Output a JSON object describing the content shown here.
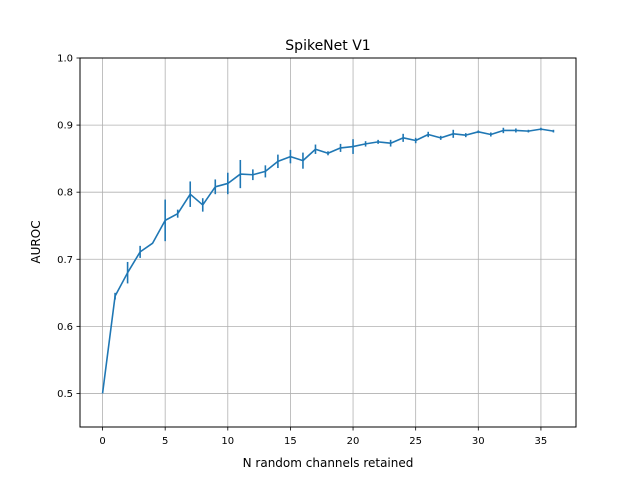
{
  "chart_data": {
    "type": "line",
    "title": "SpikeNet V1",
    "xlabel": "N random channels retained",
    "ylabel": "AUROC",
    "xlim": [
      -1.8,
      37.8
    ],
    "ylim": [
      0.45,
      1.0
    ],
    "xticks": [
      0,
      5,
      10,
      15,
      20,
      25,
      30,
      35
    ],
    "xtick_labels": [
      "0",
      "5",
      "10",
      "15",
      "20",
      "25",
      "30",
      "35"
    ],
    "yticks": [
      0.5,
      0.6,
      0.7,
      0.8,
      0.9,
      1.0
    ],
    "ytick_labels": [
      "0.5",
      "0.6",
      "0.7",
      "0.8",
      "0.9",
      "1.0"
    ],
    "grid": true,
    "line_color": "#1f77b4",
    "series": [
      {
        "x": [
          0,
          1,
          2,
          3,
          4,
          5,
          6,
          7,
          8,
          9,
          10,
          11,
          12,
          13,
          14,
          15,
          16,
          17,
          18,
          19,
          20,
          21,
          22,
          23,
          24,
          25,
          26,
          27,
          28,
          29,
          30,
          31,
          32,
          33,
          34,
          35,
          36
        ],
        "y": [
          0.5,
          0.645,
          0.68,
          0.711,
          0.724,
          0.758,
          0.768,
          0.797,
          0.781,
          0.808,
          0.813,
          0.827,
          0.826,
          0.831,
          0.846,
          0.853,
          0.847,
          0.864,
          0.858,
          0.866,
          0.868,
          0.872,
          0.875,
          0.873,
          0.881,
          0.877,
          0.886,
          0.881,
          0.887,
          0.885,
          0.89,
          0.886,
          0.892,
          0.892,
          0.891,
          0.894,
          0.891
        ],
        "yerr": [
          0.0,
          0.005,
          0.016,
          0.009,
          0.0,
          0.031,
          0.006,
          0.019,
          0.01,
          0.011,
          0.016,
          0.021,
          0.008,
          0.009,
          0.01,
          0.01,
          0.012,
          0.007,
          0.003,
          0.006,
          0.011,
          0.004,
          0.003,
          0.005,
          0.006,
          0.004,
          0.004,
          0.003,
          0.006,
          0.003,
          0.002,
          0.003,
          0.004,
          0.003,
          0.002,
          0.002,
          0.002
        ]
      }
    ]
  }
}
